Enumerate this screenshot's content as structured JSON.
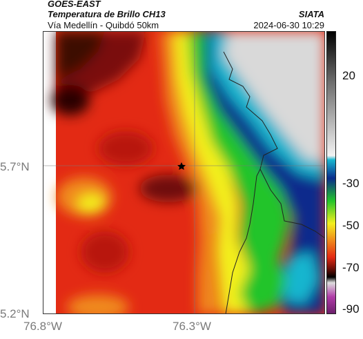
{
  "header": {
    "source": "GOES-EAST",
    "product": "Temperatura de Brillo CH13",
    "region": "Vía Medellín - Quibdó 50km",
    "org": "SIATA",
    "datetime": "2024-06-30 10:29"
  },
  "map": {
    "lat_ticks": [
      "5.7°N",
      "5.2°N"
    ],
    "lon_ticks": [
      "76.8°W",
      "76.3°W"
    ],
    "marker": "star",
    "gridlines": true
  },
  "colorbar": {
    "ticks": [
      "20",
      "-30",
      "-50",
      "-70",
      "-90"
    ],
    "colors": {
      "warm": "#dcdcdc",
      "cyan": "#17b6cf",
      "navy": "#0a2c8c",
      "green": "#23c42b",
      "yellow": "#f3ef1f",
      "orange": "#f08a1c",
      "red": "#e32a14",
      "darkred": "#6e0f08",
      "magenta": "#b03ca8"
    }
  }
}
